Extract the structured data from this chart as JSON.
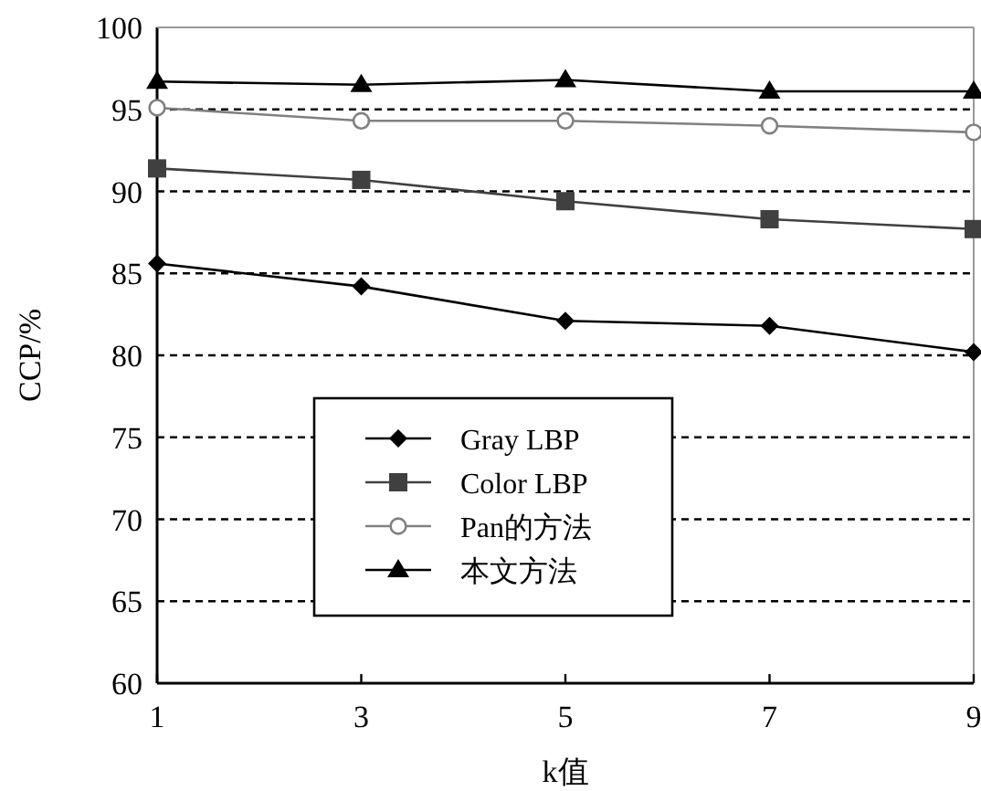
{
  "chart_data": {
    "type": "line",
    "xlabel": "k值",
    "ylabel": "CCP/%",
    "x": [
      1,
      3,
      5,
      7,
      9
    ],
    "xlim": [
      1,
      9
    ],
    "xticks": [
      1,
      3,
      5,
      7,
      9
    ],
    "ylim": [
      60,
      100
    ],
    "yticks": [
      60,
      65,
      70,
      75,
      80,
      85,
      90,
      95,
      100
    ],
    "grid": "y",
    "legend": "bottom left",
    "line_style": "solid",
    "series": [
      {
        "name": "Gray LBP",
        "color": "#000000",
        "marker": "diamond",
        "values": [
          85.6,
          84.2,
          82.1,
          81.8,
          80.2
        ]
      },
      {
        "name": "Color LBP",
        "color": "#404040",
        "marker": "square",
        "values": [
          91.4,
          90.7,
          89.4,
          88.3,
          87.7
        ]
      },
      {
        "name": "Pan的方法",
        "color": "#808080",
        "marker": "circle",
        "values": [
          95.1,
          94.3,
          94.3,
          94.0,
          93.6
        ]
      },
      {
        "name": "本文方法",
        "color": "#000000",
        "marker": "triangle",
        "values": [
          96.7,
          96.5,
          96.8,
          96.1,
          96.1
        ]
      }
    ]
  }
}
